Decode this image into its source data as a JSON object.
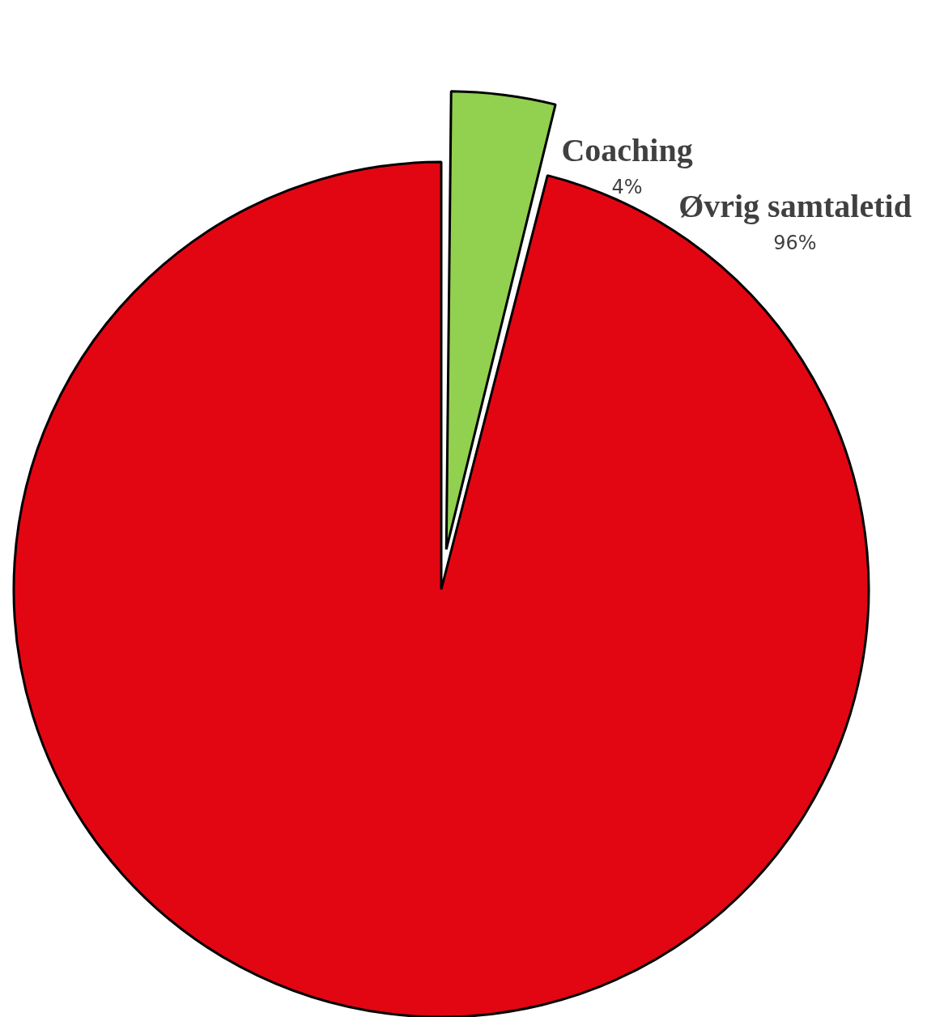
{
  "chart_data": {
    "type": "pie",
    "categories": [
      "Coaching",
      "Øvrig samtaletid"
    ],
    "values": [
      4,
      96
    ],
    "colors": [
      "#92d050",
      "#e20613"
    ],
    "value_labels": [
      "4%",
      "96%"
    ],
    "legend": false
  }
}
